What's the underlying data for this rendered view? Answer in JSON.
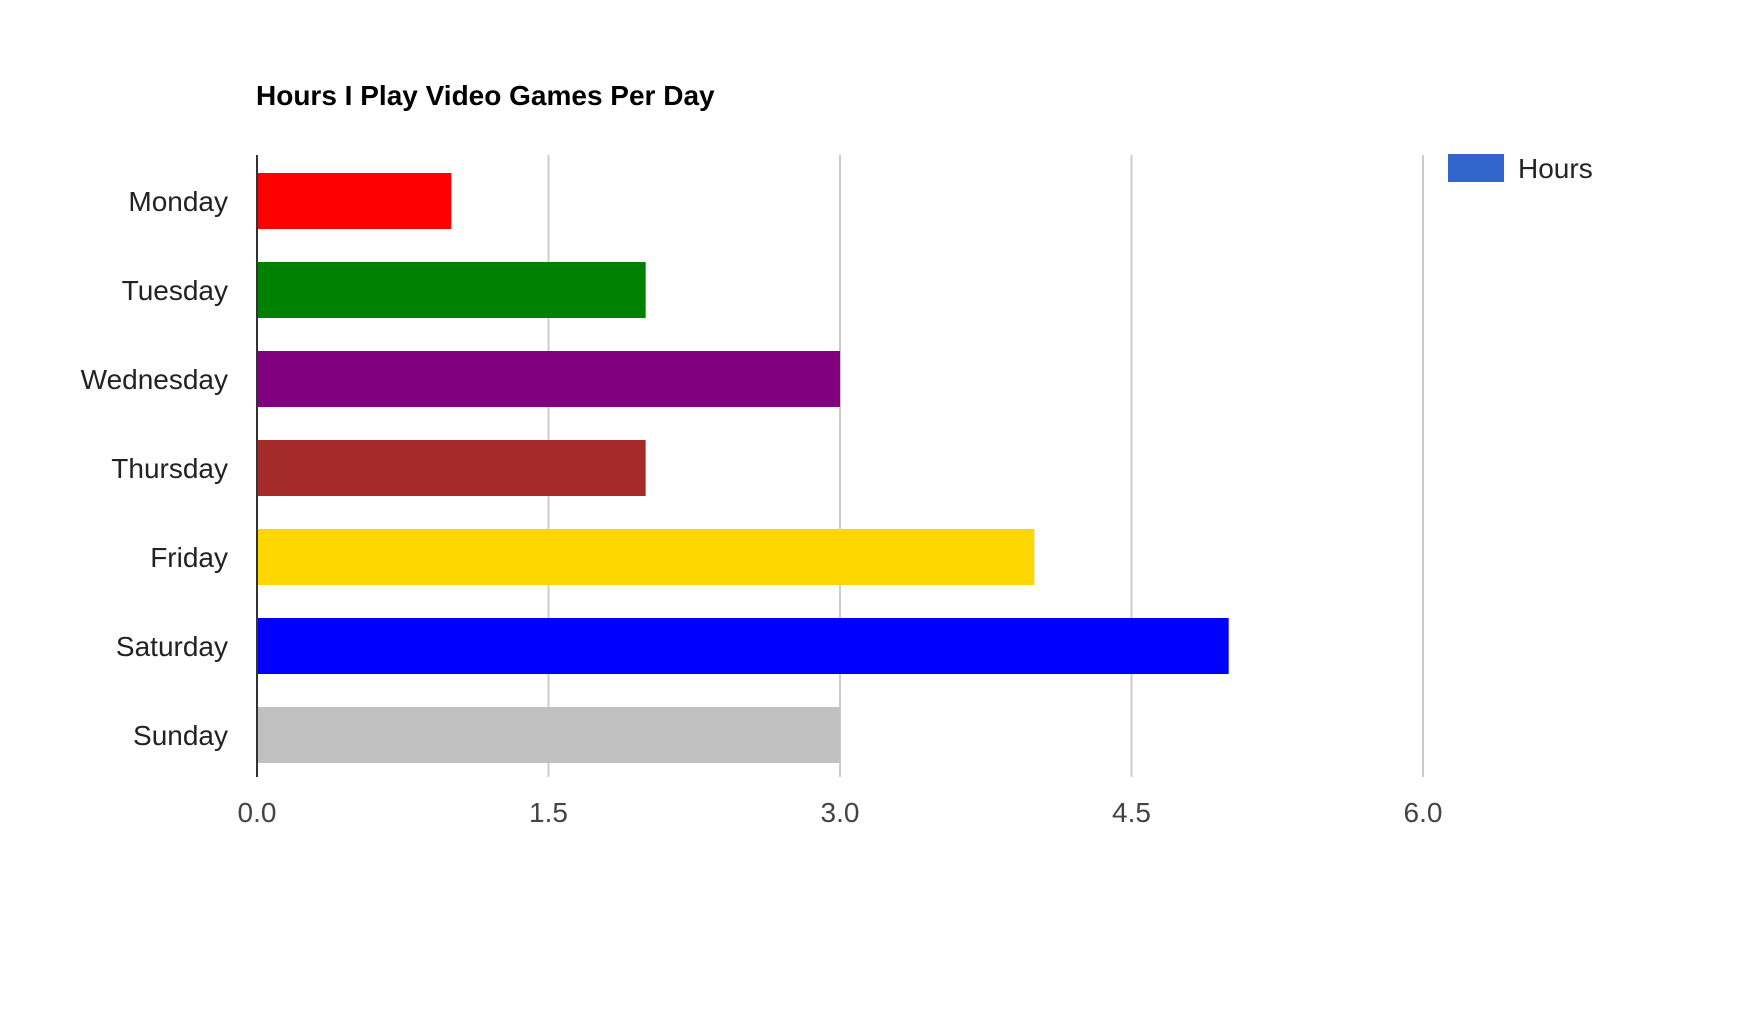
{
  "chart_data": {
    "type": "bar",
    "orientation": "horizontal",
    "title": "Hours I Play Video Games Per Day",
    "xlabel": "",
    "ylabel": "",
    "categories": [
      "Monday",
      "Tuesday",
      "Wednesday",
      "Thursday",
      "Friday",
      "Saturday",
      "Sunday"
    ],
    "series": [
      {
        "name": "Hours",
        "values": [
          1,
          2,
          3,
          2,
          4,
          5,
          3
        ],
        "colors": [
          "#ff0000",
          "#008000",
          "#800080",
          "#a52a2a",
          "#ffd700",
          "#0000ff",
          "#c0c0c0"
        ]
      }
    ],
    "xlim": [
      0,
      6
    ],
    "xticks": [
      "0.0",
      "1.5",
      "3.0",
      "4.5",
      "6.0"
    ],
    "grid": true,
    "legend_position": "top-right",
    "legend_color": "#3366cc",
    "axis_color": "#333333",
    "grid_color": "#cccccc"
  }
}
